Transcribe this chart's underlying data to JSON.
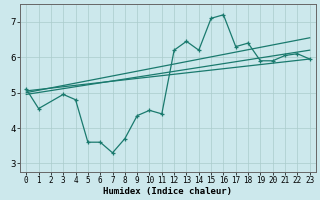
{
  "xlabel": "Humidex (Indice chaleur)",
  "bg_color": "#cce8ec",
  "grid_color": "#aacccc",
  "line_color": "#1a7a6e",
  "xlim": [
    -0.5,
    23.5
  ],
  "ylim": [
    2.75,
    7.5
  ],
  "xticks": [
    0,
    1,
    2,
    3,
    4,
    5,
    6,
    7,
    8,
    9,
    10,
    11,
    12,
    13,
    14,
    15,
    16,
    17,
    18,
    19,
    20,
    21,
    22,
    23
  ],
  "yticks": [
    3,
    4,
    5,
    6,
    7
  ],
  "series": [
    {
      "x": [
        0,
        1,
        3,
        4,
        5,
        6,
        7,
        8,
        9,
        10,
        11,
        12,
        13,
        14,
        15,
        16,
        17,
        18,
        19,
        20,
        21,
        22,
        23
      ],
      "y": [
        5.1,
        4.55,
        4.95,
        4.8,
        3.6,
        3.6,
        3.3,
        3.7,
        4.35,
        4.5,
        4.4,
        6.2,
        6.45,
        6.2,
        7.1,
        7.2,
        6.3,
        6.4,
        5.9,
        5.9,
        6.05,
        6.1,
        5.95
      ],
      "marker": true
    },
    {
      "x": [
        0,
        23
      ],
      "y": [
        5.0,
        6.55
      ],
      "marker": false
    },
    {
      "x": [
        0,
        23
      ],
      "y": [
        4.95,
        6.2
      ],
      "marker": false
    },
    {
      "x": [
        0,
        23
      ],
      "y": [
        5.05,
        5.95
      ],
      "marker": false
    }
  ],
  "xlabel_fontsize": 6.5,
  "tick_fontsize": 5.5,
  "ytick_fontsize": 6.5
}
